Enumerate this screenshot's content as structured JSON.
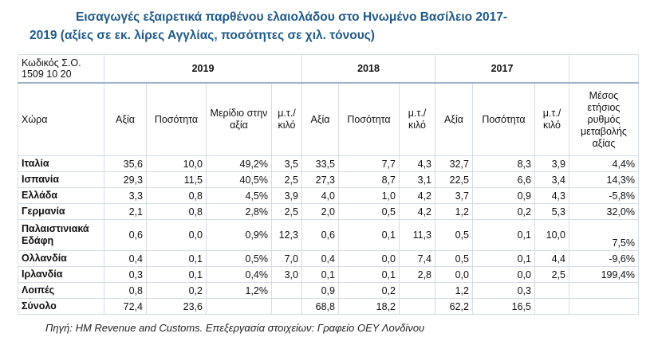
{
  "title": {
    "line1": "Εισαγωγές εξαιρετικά παρθένου ελαιολάδου στο Ηνωμένο Βασίλειο 2017-",
    "line2": "2019 (αξίες σε εκ. λίρες Αγγλίας, ποσότητες σε χιλ. τόνους)"
  },
  "table": {
    "code_label_1": "Κωδικός Σ.Ο.",
    "code_label_2": "1509 10 20",
    "years": [
      "2019",
      "2018",
      "2017"
    ],
    "columns": [
      "Χώρα",
      "Αξία",
      "Ποσότητα",
      "Μερίδιο στην αξία",
      "μ.τ./ κιλό",
      "Αξία",
      "Ποσότητα",
      "μ.τ./ κιλό",
      "Αξία",
      "Ποσότητα",
      "μ.τ./ κιλό",
      "Μέσος ετήσιος ρυθμός μεταβολής αξίας"
    ],
    "rows": [
      [
        "Ιταλία",
        "35,6",
        "10,0",
        "49,2%",
        "3,5",
        "33,5",
        "7,7",
        "4,3",
        "32,7",
        "8,3",
        "3,9",
        "4,4%"
      ],
      [
        "Ισπανία",
        "29,3",
        "11,5",
        "40,5%",
        "2,5",
        "27,3",
        "8,7",
        "3,1",
        "22,5",
        "6,6",
        "3,4",
        "14,3%"
      ],
      [
        "Ελλάδα",
        "3,3",
        "0,8",
        "4,5%",
        "3,9",
        "4,0",
        "1,0",
        "4,2",
        "3,7",
        "0,9",
        "4,3",
        "-5,8%"
      ],
      [
        "Γερμανία",
        "2,1",
        "0,8",
        "2,8%",
        "2,5",
        "2,0",
        "0,5",
        "4,2",
        "1,2",
        "0,2",
        "5,3",
        "32,0%"
      ],
      [
        "Παλαιστινιακά Εδάφη",
        "0,6",
        "0,0",
        "0,9%",
        "12,3",
        "0,6",
        "0,1",
        "11,3",
        "0,5",
        "0,1",
        "10,0",
        "7,5%"
      ],
      [
        "Ολλανδία",
        "0,4",
        "0,1",
        "0,5%",
        "7,0",
        "0,4",
        "0,0",
        "7,4",
        "0,5",
        "0,1",
        "4,4",
        "-9,6%"
      ],
      [
        "Ιρλανδία",
        "0,3",
        "0,1",
        "0,4%",
        "3,0",
        "0,1",
        "0,1",
        "2,8",
        "0,0",
        "0,0",
        "2,5",
        "199,4%"
      ],
      [
        "Λοιπές",
        "0,8",
        "0,2",
        "1,2%",
        "",
        "0,9",
        "0,2",
        "",
        "1,2",
        "0,3",
        "",
        ""
      ],
      [
        "Σύνολο",
        "72,4",
        "23,6",
        "",
        "",
        "68,8",
        "18,2",
        "",
        "62,2",
        "16,5",
        "",
        ""
      ]
    ]
  },
  "source": "Πηγή: HM Revenue and Customs. Επεξεργασία στοιχείων: Γραφείο ΟΕΥ Λονδίνου"
}
